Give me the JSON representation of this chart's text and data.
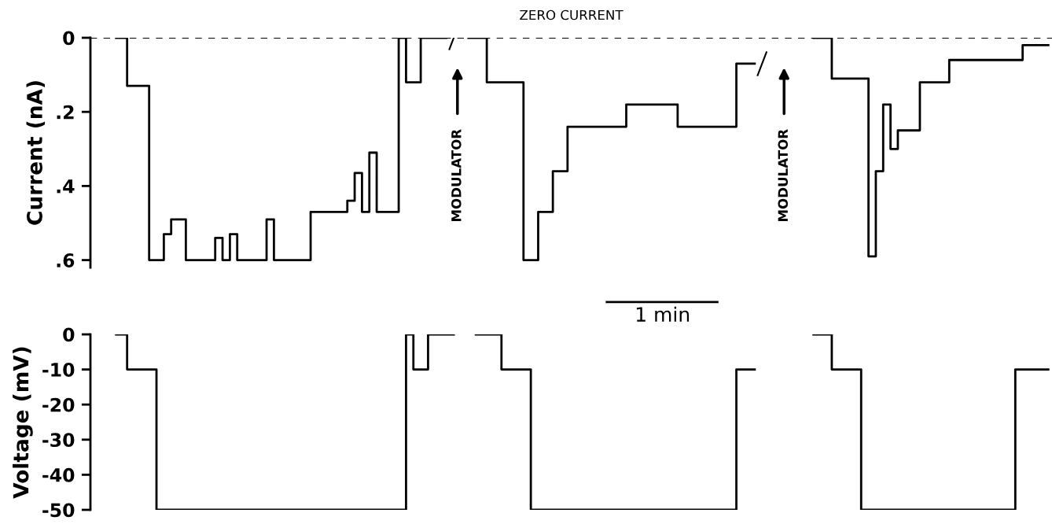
{
  "chart_data": [
    {
      "type": "step",
      "ylabel": "Current (nA)",
      "ylim": [
        0.62,
        0
      ],
      "yticks": [
        0,
        {
          "value": 0.2,
          "label": ".2"
        },
        {
          "value": 0.4,
          "label": ".4"
        },
        {
          "value": 0.6,
          "label": ".6"
        }
      ],
      "tick_labels": "y",
      "grid": false,
      "categories": [
        null,
        null,
        null,
        null,
        null,
        null,
        null,
        null,
        null,
        null,
        null,
        null,
        null,
        null,
        null,
        null,
        null,
        null,
        null,
        null,
        null,
        null,
        null,
        null,
        null,
        null,
        null,
        null,
        null,
        null,
        null,
        null,
        null,
        null,
        null,
        null,
        null,
        null,
        null,
        null,
        null,
        null,
        null,
        null,
        null,
        null,
        null,
        null,
        null,
        null,
        null,
        null,
        null,
        null,
        null,
        null,
        null,
        null,
        null,
        null,
        null,
        null,
        null,
        null,
        null,
        null,
        null,
        null,
        null,
        null,
        null,
        null,
        null,
        null,
        null,
        null,
        null,
        null,
        null,
        null,
        null,
        null,
        null,
        null,
        null,
        null,
        null,
        null,
        null,
        null,
        null,
        null,
        null,
        null,
        null,
        null,
        null,
        null,
        null,
        null,
        null,
        null,
        null,
        null,
        null,
        null,
        null,
        null,
        null,
        null,
        null,
        null,
        null,
        null,
        null,
        null,
        null,
        null,
        null,
        null,
        null,
        null,
        null,
        null,
        null,
        null,
        null,
        null,
        null,
        null,
        null
      ],
      "series": [
        {
          "color": "#000000",
          "values": [
            null,
            null,
            null,
            0,
            0,
            0.13,
            0.13,
            0.13,
            0.6,
            0.6,
            0.53,
            0.49,
            0.49,
            0.6,
            0.6,
            0.6,
            0.6,
            0.54,
            0.6,
            0.53,
            0.6,
            0.6,
            0.6,
            0.6,
            0.49,
            0.6,
            0.6,
            0.6,
            0.6,
            0.6,
            0.47,
            0.47,
            0.47,
            0.47,
            0.47,
            0.44,
            0.365,
            0.47,
            0.31,
            0.47,
            0.47,
            0.47,
            0,
            0.12,
            0.12,
            0,
            0,
            0,
            0,
            null,
            null,
            0,
            0,
            0,
            0.12,
            0.12,
            0.12,
            0.12,
            0.12,
            0.6,
            0.6,
            0.47,
            0.47,
            0.36,
            0.36,
            0.24,
            0.24,
            0.24,
            0.24,
            0.24,
            0.24,
            0.24,
            0.24,
            0.18,
            0.18,
            0.18,
            0.18,
            0.18,
            0.18,
            0.18,
            0.24,
            0.24,
            0.24,
            0.24,
            0.24,
            0.24,
            0.24,
            0.24,
            0.07,
            0.07,
            0.07,
            null,
            null,
            null,
            null,
            null,
            null,
            null,
            0,
            0,
            0,
            0.11,
            0.11,
            0.11,
            0.11,
            0.11,
            0.59,
            0.36,
            0.18,
            0.3,
            0.25,
            0.25,
            0.25,
            0.12,
            0.12,
            0.12,
            0.12,
            0.06,
            0.06,
            0.06,
            0.06,
            0.06,
            0.06,
            0.06,
            0.06,
            0.06,
            0.06,
            0.02,
            0.02,
            0.02,
            0.02
          ]
        }
      ],
      "ref_lines": [
        {
          "axis": "y",
          "value": 0,
          "label": "ZERO CURRENT",
          "line_style": "dashed",
          "color": "#000000"
        }
      ],
      "annotations": [
        "MODULATOR",
        "MODULATOR",
        "1 min"
      ]
    },
    {
      "type": "step",
      "ylabel": "Voltage (mV)",
      "ylim": [
        -50,
        0
      ],
      "yticks": [
        0,
        -10,
        -20,
        -30,
        -40,
        -50
      ],
      "tick_labels": "y",
      "grid": false,
      "categories": [
        null,
        null,
        null,
        null,
        null,
        null,
        null,
        null,
        null,
        null,
        null,
        null,
        null,
        null,
        null,
        null,
        null,
        null,
        null,
        null,
        null,
        null,
        null,
        null,
        null,
        null,
        null,
        null,
        null,
        null,
        null,
        null,
        null,
        null,
        null,
        null,
        null,
        null,
        null,
        null,
        null,
        null,
        null,
        null,
        null,
        null,
        null,
        null,
        null,
        null,
        null,
        null,
        null,
        null,
        null,
        null,
        null,
        null,
        null,
        null,
        null,
        null,
        null,
        null,
        null,
        null,
        null,
        null,
        null,
        null,
        null,
        null,
        null,
        null,
        null,
        null,
        null,
        null,
        null,
        null,
        null,
        null,
        null,
        null,
        null,
        null,
        null,
        null,
        null,
        null,
        null,
        null,
        null,
        null,
        null,
        null,
        null,
        null,
        null,
        null,
        null,
        null,
        null,
        null,
        null,
        null,
        null,
        null,
        null,
        null,
        null,
        null,
        null,
        null,
        null,
        null,
        null,
        null,
        null,
        null,
        null,
        null,
        null,
        null,
        null,
        null,
        null,
        null,
        null,
        null,
        null
      ],
      "series": [
        {
          "color": "#000000",
          "values": [
            null,
            null,
            null,
            0,
            0,
            -10,
            -10,
            -10,
            -10,
            -50,
            -50,
            -50,
            -50,
            -50,
            -50,
            -50,
            -50,
            -50,
            -50,
            -50,
            -50,
            -50,
            -50,
            -50,
            -50,
            -50,
            -50,
            -50,
            -50,
            -50,
            -50,
            -50,
            -50,
            -50,
            -50,
            -50,
            -50,
            -50,
            -50,
            -50,
            -50,
            -50,
            -50,
            0,
            -10,
            -10,
            0,
            0,
            0,
            0,
            null,
            null,
            0,
            0,
            0,
            0,
            -10,
            -10,
            -10,
            -10,
            -50,
            -50,
            -50,
            -50,
            -50,
            -50,
            -50,
            -50,
            -50,
            -50,
            -50,
            -50,
            -50,
            -50,
            -50,
            -50,
            -50,
            -50,
            -50,
            -50,
            -50,
            -50,
            -50,
            -50,
            -50,
            -50,
            -50,
            -50,
            -10,
            -10,
            -10,
            null,
            null,
            null,
            null,
            null,
            null,
            null,
            0,
            0,
            0,
            -10,
            -10,
            -10,
            -10,
            -50,
            -50,
            -50,
            -50,
            -50,
            -50,
            -50,
            -50,
            -50,
            -50,
            -50,
            -50,
            -50,
            -50,
            -50,
            -50,
            -50,
            -50,
            -50,
            -50,
            -50,
            -10,
            -10,
            -10,
            -10,
            -10
          ]
        }
      ]
    }
  ]
}
